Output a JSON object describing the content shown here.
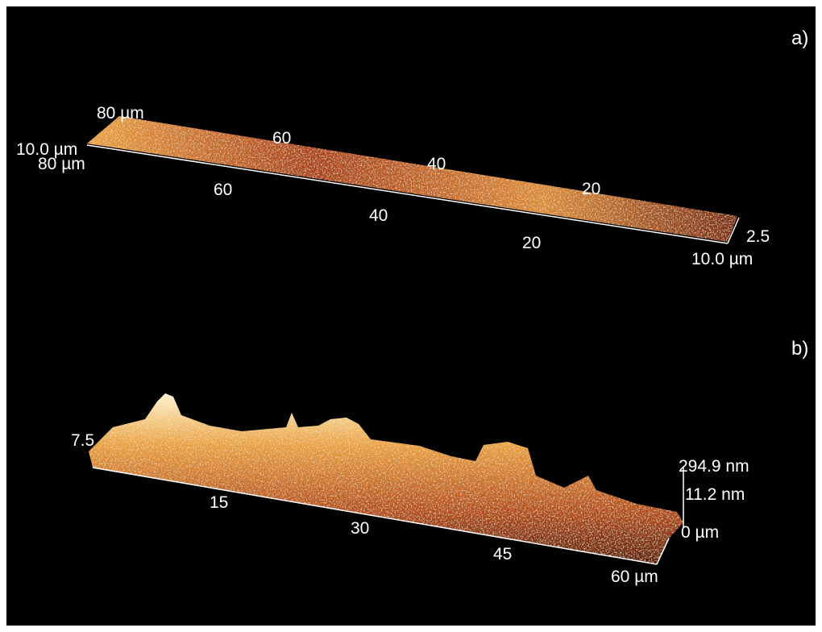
{
  "panels": [
    {
      "label": "a)",
      "axis_labels": [
        "80 µm",
        "60",
        "40",
        "20",
        "80 µm",
        "60",
        "40",
        "20",
        "10.0 µm",
        "10.0 µm",
        "2.5"
      ]
    },
    {
      "label": "b)",
      "axis_labels": [
        "15",
        "30",
        "45",
        "60 µm",
        "294.9 nm",
        "11.2 nm",
        "0 µm",
        "7.5"
      ]
    }
  ]
}
